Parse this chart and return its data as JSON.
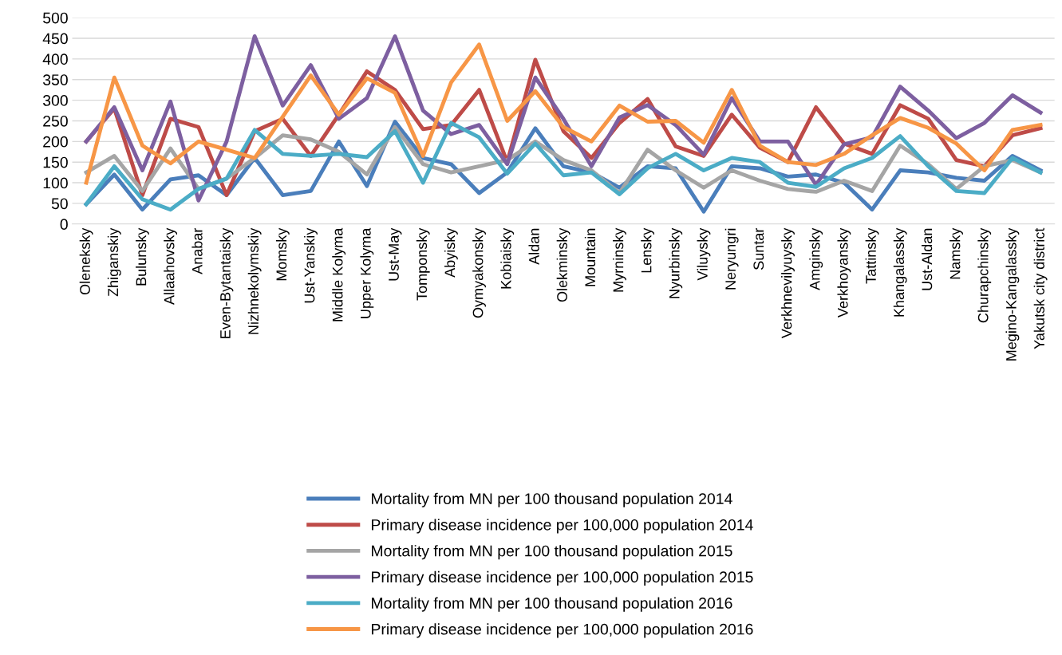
{
  "chart_data": {
    "type": "line",
    "categories": [
      "Oleneksky",
      "Zhiganskiy",
      "Bulunsky",
      "Allaahovsky",
      "Anabar",
      "Even-Bytantaisky",
      "Nizhnekolymskiy",
      "Momsky",
      "Ust-Yanskiy",
      "Middle Kolyma",
      "Upper Kolyma",
      "Ust-May",
      "Tomponsky",
      "Abyisky",
      "Oymyakonsky",
      "Kobiaisky",
      "Aldan",
      "Olekminsky",
      "Mountain",
      "Myrninsky",
      "Lensky",
      "Nyurbinsky",
      "Viluysky",
      "Neryungri",
      "Suntar",
      "Verkhnevilyuysky",
      "Amginsky",
      "Verkhoyansky",
      "Tattinsky",
      "Khangalassky",
      "Ust-Aldan",
      "Namsky",
      "Churapchinsky",
      "Megino-Kangalassky",
      "Yakutsk city district"
    ],
    "series": [
      {
        "name": "Mortality from MN per 100 thousand population 2014",
        "color": "#4a7ebb",
        "values": [
          48,
          120,
          35,
          108,
          118,
          70,
          160,
          70,
          80,
          200,
          92,
          248,
          160,
          145,
          75,
          125,
          232,
          140,
          125,
          88,
          140,
          135,
          30,
          140,
          135,
          115,
          120,
          100,
          35,
          130,
          125,
          112,
          105,
          165,
          130
        ]
      },
      {
        "name": "Primary disease incidence per 100,000 population 2014",
        "color": "#be4b48",
        "values": [
          200,
          280,
          70,
          255,
          235,
          70,
          225,
          255,
          165,
          265,
          370,
          325,
          230,
          240,
          325,
          150,
          398,
          225,
          160,
          245,
          303,
          188,
          165,
          265,
          185,
          150,
          283,
          195,
          170,
          288,
          255,
          155,
          140,
          215,
          232
        ]
      },
      {
        "name": "Mortality from MN per 100 thousand population 2015",
        "color": "#a5a5a5",
        "values": [
          125,
          165,
          80,
          183,
          85,
          110,
          160,
          215,
          205,
          175,
          120,
          235,
          145,
          125,
          140,
          155,
          200,
          155,
          130,
          75,
          180,
          130,
          88,
          130,
          105,
          85,
          78,
          105,
          80,
          190,
          145,
          85,
          140,
          155,
          125
        ]
      },
      {
        "name": "Primary disease incidence per 100,000 population 2015",
        "color": "#7d5fa0",
        "values": [
          200,
          283,
          130,
          297,
          57,
          200,
          455,
          287,
          385,
          255,
          305,
          455,
          275,
          218,
          240,
          145,
          355,
          255,
          140,
          258,
          288,
          240,
          168,
          305,
          200,
          200,
          95,
          193,
          210,
          333,
          275,
          208,
          245,
          312,
          270
        ]
      },
      {
        "name": "Mortality from MN per 100 thousand population 2016",
        "color": "#4bacc6",
        "values": [
          48,
          140,
          60,
          35,
          85,
          110,
          228,
          170,
          165,
          170,
          162,
          225,
          100,
          245,
          210,
          122,
          195,
          118,
          125,
          72,
          135,
          170,
          130,
          160,
          150,
          100,
          90,
          135,
          160,
          213,
          140,
          80,
          75,
          160,
          125
        ]
      },
      {
        "name": "Primary disease incidence per 100,000 population 2016",
        "color": "#f79646",
        "values": [
          100,
          355,
          190,
          147,
          200,
          180,
          160,
          260,
          360,
          265,
          353,
          318,
          165,
          343,
          435,
          250,
          322,
          235,
          200,
          287,
          248,
          250,
          197,
          325,
          190,
          150,
          143,
          170,
          215,
          257,
          233,
          195,
          130,
          228,
          240
        ]
      }
    ],
    "ylim": [
      0,
      500
    ],
    "yticks": [
      0,
      50,
      100,
      150,
      200,
      250,
      300,
      350,
      400,
      450,
      500
    ],
    "grid": "y",
    "legend": "bottom",
    "marker": "none",
    "line_style": "solid"
  }
}
